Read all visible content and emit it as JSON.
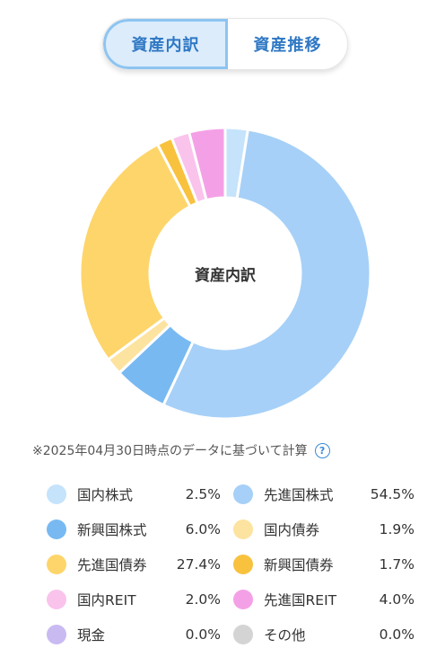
{
  "tabs": [
    {
      "label": "資産内訳",
      "active": true
    },
    {
      "label": "資産推移",
      "active": false
    }
  ],
  "chart_data": {
    "type": "pie",
    "center_label": "資産内訳",
    "slices": [
      {
        "name": "国内株式",
        "value": 2.5,
        "display": "2.5%",
        "color": "#c5e3fb"
      },
      {
        "name": "先進国株式",
        "value": 54.5,
        "display": "54.5%",
        "color": "#a6d0f7"
      },
      {
        "name": "新興国株式",
        "value": 6.0,
        "display": "6.0%",
        "color": "#78b9f2"
      },
      {
        "name": "国内債券",
        "value": 1.9,
        "display": "1.9%",
        "color": "#fde3a0"
      },
      {
        "name": "先進国債券",
        "value": 27.4,
        "display": "27.4%",
        "color": "#fdd56a"
      },
      {
        "name": "新興国債券",
        "value": 1.7,
        "display": "1.7%",
        "color": "#f8c23e"
      },
      {
        "name": "国内REIT",
        "value": 2.0,
        "display": "2.0%",
        "color": "#f9c3ec"
      },
      {
        "name": "先進国REIT",
        "value": 4.0,
        "display": "4.0%",
        "color": "#f4a0e6"
      },
      {
        "name": "現金",
        "value": 0.0,
        "display": "0.0%",
        "color": "#c9baf2"
      },
      {
        "name": "その他",
        "value": 0.0,
        "display": "0.0%",
        "color": "#d4d4d4"
      }
    ]
  },
  "note": "※2025年04月30日時点のデータに基づいて計算",
  "help_icon": "?"
}
